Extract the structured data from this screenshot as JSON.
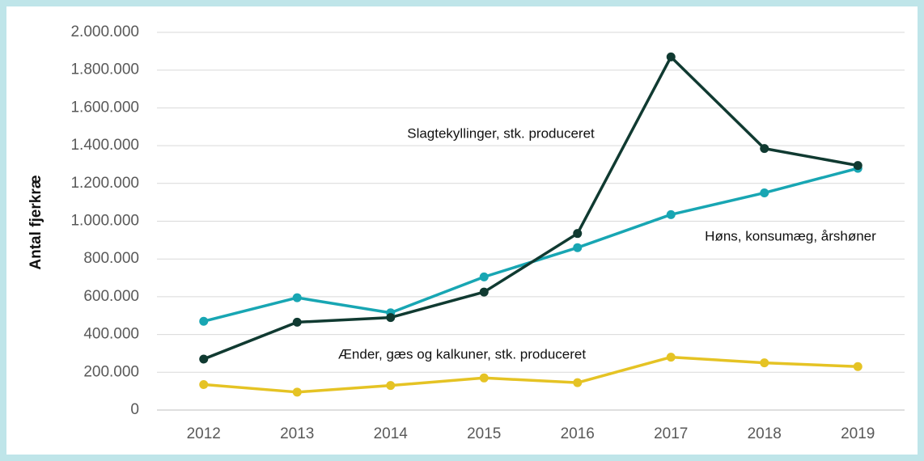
{
  "chart_data": {
    "type": "line",
    "y_label": "Antal fjerkræ",
    "categories": [
      "2012",
      "2013",
      "2014",
      "2015",
      "2016",
      "2017",
      "2018",
      "2019"
    ],
    "series": [
      {
        "name": "Slagtekyllinger, stk. produceret",
        "color": "#103a31",
        "values": [
          270000,
          465000,
          490000,
          625000,
          935000,
          1870000,
          1385000,
          1295000
        ]
      },
      {
        "name": "Høns, konsumæg, årshøner",
        "color": "#18a6b3",
        "values": [
          470000,
          595000,
          515000,
          705000,
          860000,
          1035000,
          1150000,
          1280000
        ]
      },
      {
        "name": "Ænder, gæs og kalkuner, stk. produceret",
        "color": "#e5c324",
        "values": [
          135000,
          95000,
          130000,
          170000,
          145000,
          280000,
          250000,
          230000
        ]
      }
    ],
    "ylim": [
      0,
      2000000
    ],
    "yticks": [
      0,
      {
        "value": 200000,
        "label": "200.000"
      },
      {
        "value": 400000,
        "label": "400.000"
      },
      {
        "value": 600000,
        "label": "600.000"
      },
      {
        "value": 800000,
        "label": "800.000"
      },
      {
        "value": 1000000,
        "label": "1.000.000"
      },
      {
        "value": 1200000,
        "label": "1.200.000"
      },
      {
        "value": 1400000,
        "label": "1.400.000"
      },
      {
        "value": 1600000,
        "label": "1.600.000"
      },
      {
        "value": 1800000,
        "label": "1.800.000"
      },
      {
        "value": 2000000,
        "label": "2.000.000"
      }
    ],
    "grid": true
  }
}
